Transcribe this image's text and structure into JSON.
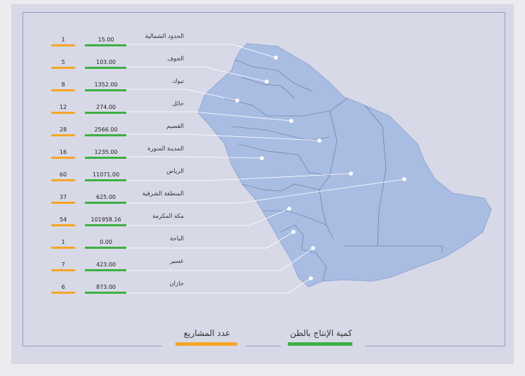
{
  "legend": {
    "production_label": "كمية الإنتاج بالطن",
    "projects_label": "عدد المشاريع",
    "production_color": "#3cb043",
    "projects_color": "#f5a623"
  },
  "regions": [
    {
      "name": "الحدود الشمالية",
      "production": "15.00",
      "projects": "1"
    },
    {
      "name": "الجوف",
      "production": "103.00",
      "projects": "5"
    },
    {
      "name": "تبوك",
      "production": "1352.00",
      "projects": "8"
    },
    {
      "name": "حائل",
      "production": "274.00",
      "projects": "12"
    },
    {
      "name": "القصيم",
      "production": "2566.00",
      "projects": "28"
    },
    {
      "name": "المدينة المنورة",
      "production": "1235.00",
      "projects": "16"
    },
    {
      "name": "الرياض",
      "production": "11071.00",
      "projects": "60"
    },
    {
      "name": "المنطقة الشرقية",
      "production": "625.00",
      "projects": "37"
    },
    {
      "name": "مكة المكرمة",
      "production": "101958.16",
      "projects": "54"
    },
    {
      "name": "الباحة",
      "production": "0.00",
      "projects": "1"
    },
    {
      "name": "عسير",
      "production": "423.00",
      "projects": "7"
    },
    {
      "name": "جازان",
      "production": "873.00",
      "projects": "6"
    }
  ]
}
